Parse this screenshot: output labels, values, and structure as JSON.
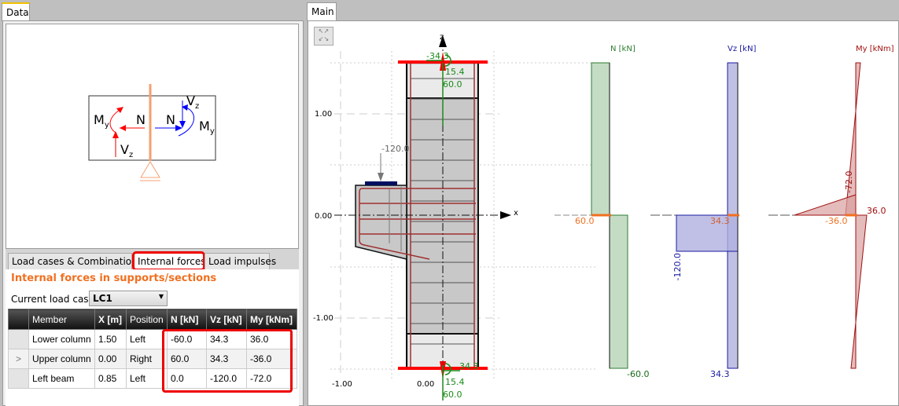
{
  "tabs": {
    "data": "Data",
    "main": "Main"
  },
  "diagram_legend": {
    "my": "M",
    "y_sub": "y",
    "n": "N",
    "vz": "V",
    "z_sub": "z"
  },
  "subtabs": [
    "Load cases & Combinations",
    "Internal forces",
    "Load impulses"
  ],
  "section_title": "Internal forces in supports/sections",
  "load_case": {
    "label": "Current load case",
    "value": "LC1"
  },
  "table": {
    "columns": [
      "Member",
      "X [m]",
      "Position",
      "N [kN]",
      "Vz [kN]",
      "My [kNm]"
    ],
    "rows": [
      {
        "selector": "",
        "cells": [
          "Lower column",
          "1.50",
          "Left",
          "-60.0",
          "34.3",
          "36.0"
        ]
      },
      {
        "selector": ">",
        "cells": [
          "Upper column",
          "0.00",
          "Right",
          "60.0",
          "34.3",
          "-36.0"
        ]
      },
      {
        "selector": "",
        "cells": [
          "Left beam",
          "0.85",
          "Left",
          "0.0",
          "-120.0",
          "-72.0"
        ]
      }
    ]
  },
  "canvas": {
    "axis_z": "z",
    "axis_x": "x",
    "ticks_y": [
      "1.00",
      "0.00",
      "-1.00"
    ],
    "ticks_x": [
      "-1.00",
      "0.00"
    ],
    "load_label": "-120.0",
    "top_labels": [
      "-34.3",
      "15.4",
      "60.0"
    ],
    "bottom_labels": [
      "34.3",
      "15.4",
      "60.0"
    ]
  },
  "diagrams": {
    "n": {
      "title": "N [kN]",
      "upper": "60.0",
      "lower": "-60.0",
      "color": "#2e7d32"
    },
    "vz": {
      "title": "Vz [kN]",
      "mid": "34.3",
      "beam": "-120.0",
      "lower": "34.3",
      "color": "#1a1aa0"
    },
    "my": {
      "title": "My [kNm]",
      "beam": "-72.0",
      "upper": "-36.0",
      "lower": "36.0",
      "color": "#a01010"
    }
  }
}
